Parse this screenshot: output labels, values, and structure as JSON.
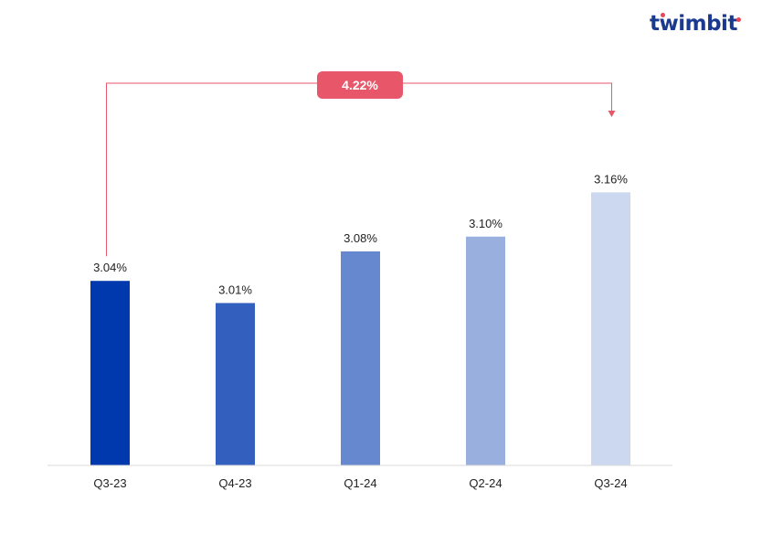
{
  "brand": {
    "name": "twimbit",
    "accent_color": "#e8475a",
    "text_color": "#1a3a8f"
  },
  "chart_data": {
    "type": "bar",
    "categories": [
      "Q3-23",
      "Q4-23",
      "Q1-24",
      "Q2-24",
      "Q3-24"
    ],
    "values": [
      3.04,
      3.01,
      3.08,
      3.1,
      3.16
    ],
    "data_labels": [
      "3.04%",
      "3.01%",
      "3.08%",
      "3.10%",
      "3.16%"
    ],
    "bar_colors": [
      "#0039ad",
      "#335fbf",
      "#6688cf",
      "#99b0df",
      "#ccd8ef"
    ],
    "title": "",
    "xlabel": "",
    "ylabel": "",
    "ylim": [
      2.79,
      3.21
    ],
    "grid": false,
    "legend": "none",
    "annotation": {
      "label": "4.22%",
      "from_category": "Q3-23",
      "to_category": "Q3-24",
      "color": "#e8566a"
    }
  }
}
